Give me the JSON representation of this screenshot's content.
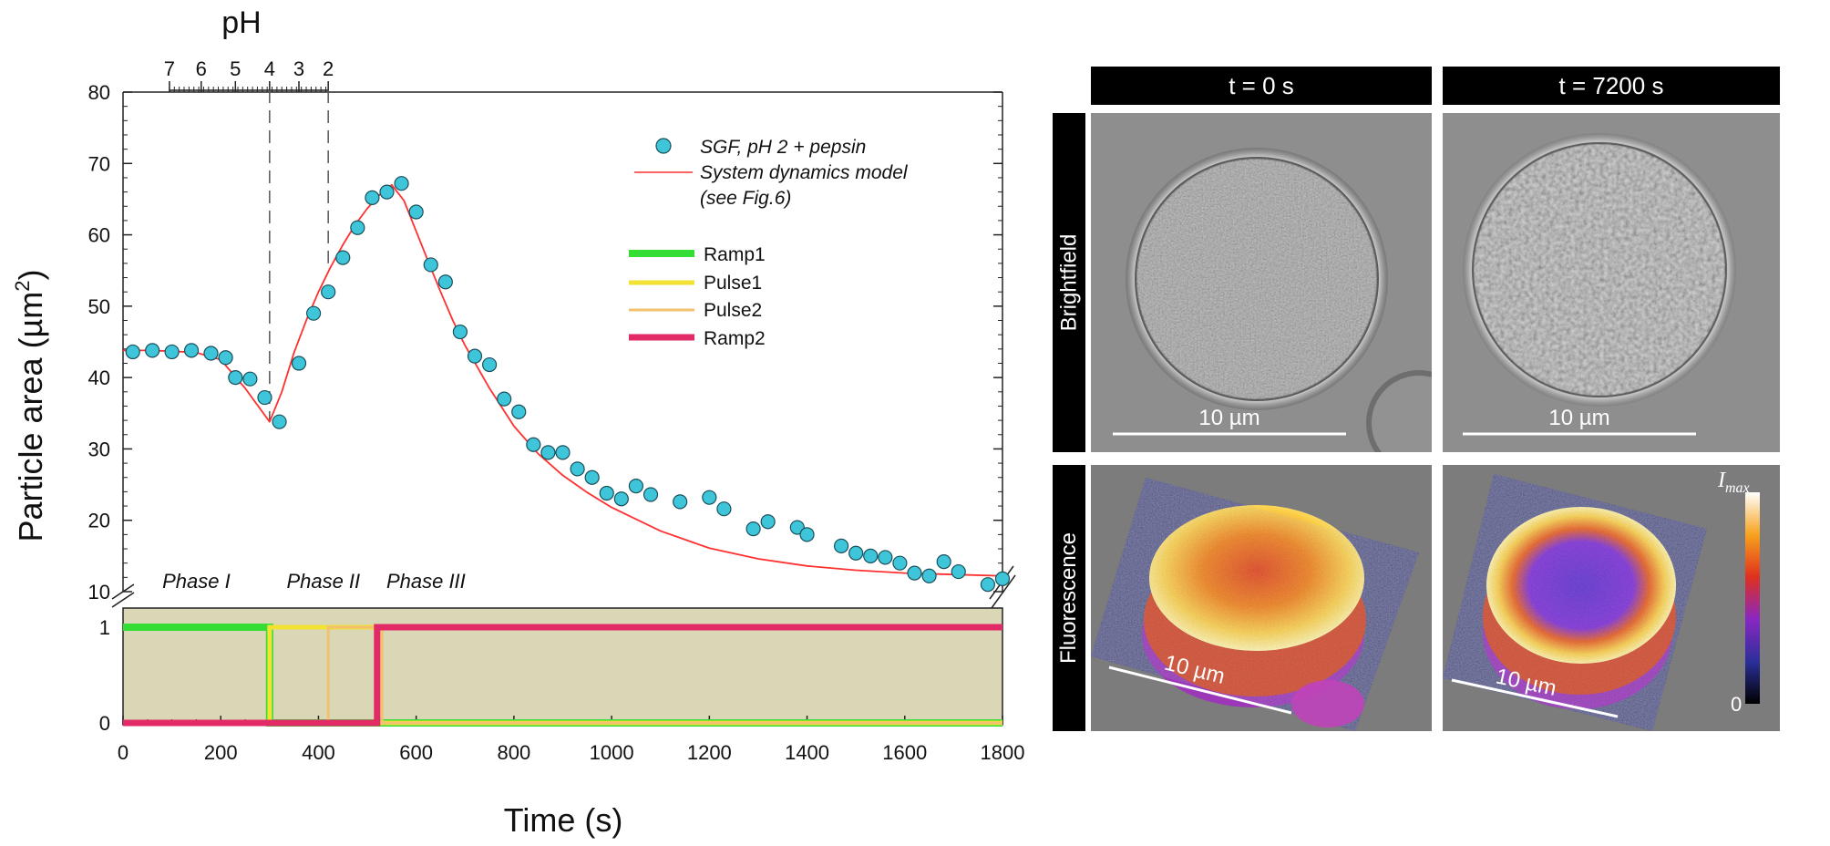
{
  "chart_data": {
    "type": "scatter",
    "xlabel": "Time (s)",
    "ylabel": "Particle area (µm²)",
    "ylabel_main": "Particle area (µm",
    "ylabel_sup": "2",
    "ylabel_close": ")",
    "top_axis_label": "pH",
    "xlim": [
      0,
      1800
    ],
    "ylim": [
      10,
      80
    ],
    "x_ticks": [
      0,
      200,
      400,
      600,
      800,
      1000,
      1200,
      1400,
      1600,
      1800
    ],
    "y_ticks": [
      10,
      20,
      30,
      40,
      50,
      60,
      70,
      80
    ],
    "ph_ticks": [
      {
        "label": "7",
        "x": 95
      },
      {
        "label": "6",
        "x": 160
      },
      {
        "label": "5",
        "x": 230
      },
      {
        "label": "4",
        "x": 300
      },
      {
        "label": "3",
        "x": 360
      },
      {
        "label": "2",
        "x": 420
      }
    ],
    "ph_minor_range": [
      95,
      420
    ],
    "vlines_x": [
      300,
      420
    ],
    "phase_labels": [
      {
        "label": "Phase I",
        "x": 150
      },
      {
        "label": "Phase II",
        "x": 410
      },
      {
        "label": "Phase III",
        "x": 620
      }
    ],
    "series": [
      {
        "name": "SGF, pH 2 + pepsin",
        "kind": "marker",
        "color": "#3fc5d9",
        "x": [
          20,
          60,
          100,
          140,
          180,
          210,
          230,
          260,
          290,
          320,
          360,
          390,
          420,
          450,
          480,
          510,
          540,
          570,
          600,
          630,
          660,
          690,
          720,
          750,
          780,
          810,
          840,
          870,
          900,
          930,
          960,
          990,
          1020,
          1050,
          1080,
          1140,
          1200,
          1230,
          1290,
          1320,
          1380,
          1400,
          1470,
          1500,
          1530,
          1560,
          1590,
          1620,
          1650,
          1680,
          1710,
          1770,
          1800
        ],
        "y": [
          43.6,
          43.8,
          43.6,
          43.8,
          43.4,
          42.8,
          40.0,
          39.8,
          37.2,
          33.8,
          42.0,
          49.0,
          52.0,
          56.8,
          61.0,
          65.2,
          66.0,
          67.2,
          63.2,
          55.8,
          53.4,
          46.4,
          43.0,
          41.8,
          37.0,
          35.2,
          30.6,
          29.5,
          29.5,
          27.2,
          26.0,
          23.8,
          23.0,
          24.8,
          23.6,
          22.6,
          23.2,
          21.6,
          18.8,
          19.8,
          19.0,
          18.0,
          16.4,
          15.4,
          15.0,
          14.8,
          14.0,
          12.6,
          12.2,
          14.2,
          12.8,
          11.0,
          11.8
        ]
      },
      {
        "name": "System dynamics model",
        "legend_line2": "(see Fig.6)",
        "kind": "line",
        "color": "#ff3030",
        "x": [
          0,
          50,
          100,
          150,
          200,
          250,
          300,
          325,
          350,
          375,
          400,
          425,
          450,
          475,
          500,
          525,
          550,
          575,
          600,
          625,
          650,
          675,
          700,
          750,
          800,
          850,
          900,
          950,
          1000,
          1100,
          1200,
          1300,
          1400,
          1500,
          1600,
          1700,
          1800
        ],
        "y": [
          43.8,
          43.8,
          43.7,
          43.5,
          42.5,
          38.5,
          33.8,
          38.0,
          43.5,
          48.0,
          52.0,
          55.5,
          58.6,
          61.4,
          63.7,
          65.6,
          67.0,
          64.8,
          60.5,
          56.2,
          52.0,
          48.0,
          44.5,
          38.5,
          33.2,
          29.3,
          26.3,
          23.9,
          21.8,
          18.5,
          16.1,
          14.6,
          13.6,
          13.0,
          12.6,
          12.4,
          12.2
        ]
      }
    ],
    "lower_panel": {
      "type": "step",
      "y_ticks": [
        0,
        1
      ],
      "ylim": [
        0,
        1
      ],
      "background": "#d9d7b6",
      "series": [
        {
          "name": "Ramp1",
          "color": "#33dd33",
          "width": 8,
          "points": [
            [
              0,
              1
            ],
            [
              300,
              1
            ],
            [
              300,
              0
            ],
            [
              1800,
              0
            ]
          ]
        },
        {
          "name": "Pulse1",
          "color": "#f2e233",
          "width": 5,
          "points": [
            [
              0,
              0
            ],
            [
              300,
              0
            ],
            [
              300,
              1
            ],
            [
              520,
              1
            ],
            [
              520,
              0
            ],
            [
              1800,
              0
            ]
          ]
        },
        {
          "name": "Pulse2",
          "color": "#f3c26e",
          "width": 3,
          "points": [
            [
              0,
              0
            ],
            [
              420,
              0
            ],
            [
              420,
              1
            ],
            [
              530,
              1
            ],
            [
              530,
              0
            ],
            [
              1800,
              0
            ]
          ]
        },
        {
          "name": "Ramp2",
          "color": "#e22a66",
          "width": 7,
          "points": [
            [
              0,
              0
            ],
            [
              520,
              0
            ],
            [
              520,
              1
            ],
            [
              1800,
              1
            ]
          ]
        }
      ]
    }
  },
  "micrographs": {
    "columns": [
      "t = 0 s",
      "t = 7200 s"
    ],
    "rows": [
      "Brightfield",
      "Fluorescence"
    ],
    "scale_label": "10 µm",
    "colorbar": {
      "max_label": "I",
      "max_sub": "max",
      "min_label": "0"
    }
  }
}
